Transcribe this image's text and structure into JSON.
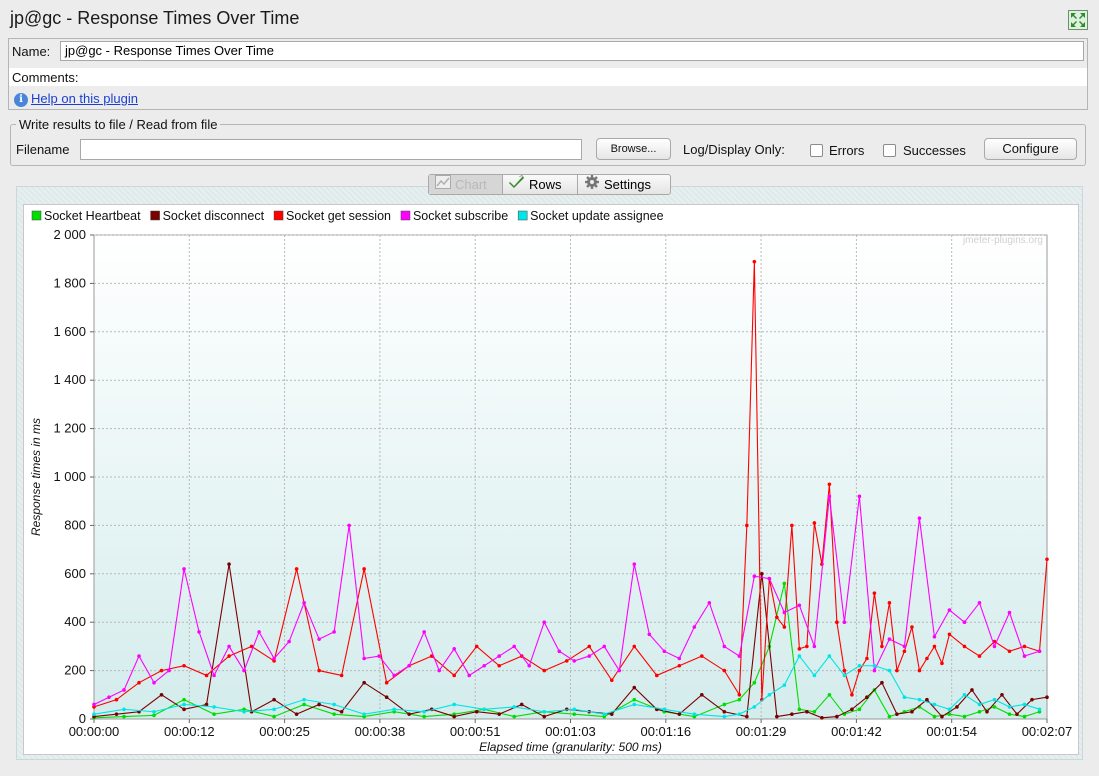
{
  "window": {
    "title": "jp@gc - Response Times Over Time"
  },
  "form": {
    "name_label": "Name:",
    "name_value": "jp@gc - Response Times Over Time",
    "comments_label": "Comments:",
    "help_link": "Help on this plugin"
  },
  "file_section": {
    "title": "Write results to file / Read from file",
    "filename_label": "Filename",
    "filename_value": "",
    "browse_label": "Browse...",
    "log_label": "Log/Display Only:",
    "errors_label": "Errors",
    "successes_label": "Successes",
    "configure_label": "Configure",
    "errors_checked": false,
    "successes_checked": false
  },
  "tabs": [
    {
      "label": "Chart",
      "selected": true,
      "icon": "chart-icon"
    },
    {
      "label": "Rows",
      "selected": false,
      "icon": "checkmark-icon"
    },
    {
      "label": "Settings",
      "selected": false,
      "icon": "gear-icon"
    }
  ],
  "chart_data": {
    "type": "line",
    "watermark": "jmeter-plugins.org",
    "xlabel": "Elapsed time (granularity: 500 ms)",
    "ylabel": "Response times in ms",
    "ylim": [
      0,
      2000
    ],
    "xlim": [
      0,
      127
    ],
    "yticks": [
      0,
      200,
      400,
      600,
      800,
      1000,
      1200,
      1400,
      1600,
      1800,
      2000
    ],
    "ytick_labels": [
      "0",
      "200",
      "400",
      "600",
      "800",
      "1 000",
      "1 200",
      "1 400",
      "1 600",
      "1 800",
      "2 000"
    ],
    "xticks": [
      0,
      12.7,
      25.4,
      38.1,
      50.8,
      63.5,
      76.2,
      88.9,
      101.6,
      114.3,
      127
    ],
    "xtick_labels": [
      "00:00:00",
      "00:00:12",
      "00:00:25",
      "00:00:38",
      "00:00:51",
      "00:01:03",
      "00:01:16",
      "00:01:29",
      "00:01:42",
      "00:01:54",
      "00:02:07"
    ],
    "grid": true,
    "legend_position": "top",
    "series": [
      {
        "name": "Socket Heartbeat",
        "color": "#00dd00",
        "x": [
          0,
          4,
          8,
          12,
          16,
          20,
          24,
          28,
          32,
          36,
          40,
          44,
          48,
          52,
          56,
          60,
          64,
          68,
          72,
          76,
          80,
          84,
          86,
          88,
          90,
          92,
          94,
          96,
          98,
          100,
          102,
          104,
          106,
          108,
          110,
          112,
          114,
          116,
          118,
          120,
          122,
          124,
          126
        ],
        "y": [
          5,
          10,
          15,
          80,
          20,
          40,
          10,
          60,
          20,
          10,
          30,
          10,
          20,
          40,
          10,
          30,
          20,
          10,
          80,
          30,
          10,
          60,
          80,
          150,
          300,
          560,
          40,
          30,
          100,
          20,
          40,
          120,
          10,
          30,
          50,
          10,
          20,
          10,
          30,
          50,
          20,
          10,
          30
        ]
      },
      {
        "name": "Socket disconnect",
        "color": "#7a0000",
        "x": [
          0,
          3,
          6,
          9,
          12,
          15,
          18,
          21,
          24,
          27,
          30,
          33,
          36,
          39,
          42,
          45,
          48,
          51,
          54,
          57,
          60,
          63,
          66,
          69,
          72,
          75,
          78,
          81,
          84,
          87,
          89,
          91,
          93,
          95,
          97,
          99,
          101,
          103,
          105,
          107,
          109,
          111,
          113,
          115,
          117,
          119,
          121,
          123,
          125,
          127
        ],
        "y": [
          10,
          20,
          30,
          100,
          40,
          60,
          640,
          30,
          80,
          20,
          60,
          30,
          150,
          90,
          20,
          40,
          10,
          30,
          20,
          60,
          10,
          40,
          30,
          20,
          130,
          40,
          20,
          100,
          30,
          10,
          600,
          10,
          20,
          30,
          5,
          10,
          40,
          90,
          150,
          20,
          30,
          80,
          10,
          50,
          120,
          30,
          100,
          20,
          80,
          90
        ]
      },
      {
        "name": "Socket get session",
        "color": "#ff0000",
        "x": [
          0,
          3,
          6,
          9,
          12,
          15,
          18,
          21,
          24,
          27,
          30,
          33,
          36,
          39,
          42,
          45,
          48,
          51,
          54,
          57,
          60,
          63,
          66,
          69,
          72,
          75,
          78,
          81,
          84,
          86,
          87,
          88,
          89,
          90,
          91,
          92,
          93,
          94,
          95,
          96,
          97,
          98,
          99,
          100,
          101,
          102,
          103,
          104,
          105,
          106,
          107,
          108,
          109,
          110,
          111,
          112,
          113,
          114,
          116,
          118,
          120,
          122,
          124,
          126,
          127
        ],
        "y": [
          50,
          80,
          150,
          200,
          220,
          180,
          260,
          300,
          240,
          620,
          200,
          180,
          620,
          150,
          220,
          260,
          180,
          300,
          220,
          260,
          200,
          240,
          300,
          160,
          300,
          180,
          220,
          260,
          200,
          100,
          800,
          1890,
          80,
          580,
          420,
          380,
          800,
          290,
          300,
          810,
          640,
          970,
          400,
          200,
          100,
          200,
          250,
          520,
          300,
          480,
          200,
          280,
          380,
          200,
          250,
          300,
          230,
          350,
          300,
          260,
          320,
          280,
          300,
          280,
          660
        ]
      },
      {
        "name": "Socket subscribe",
        "color": "#ff00ff",
        "x": [
          0,
          2,
          4,
          6,
          8,
          10,
          12,
          14,
          16,
          18,
          20,
          22,
          24,
          26,
          28,
          30,
          32,
          34,
          36,
          38,
          40,
          42,
          44,
          46,
          48,
          50,
          52,
          54,
          56,
          58,
          60,
          62,
          64,
          66,
          68,
          70,
          72,
          74,
          76,
          78,
          80,
          82,
          84,
          86,
          88,
          90,
          92,
          94,
          96,
          98,
          100,
          102,
          104,
          106,
          108,
          110,
          112,
          114,
          116,
          118,
          120,
          122,
          124,
          126
        ],
        "y": [
          60,
          90,
          120,
          260,
          150,
          200,
          620,
          360,
          180,
          300,
          200,
          360,
          250,
          320,
          480,
          330,
          360,
          800,
          250,
          260,
          180,
          220,
          360,
          200,
          290,
          180,
          220,
          260,
          300,
          220,
          400,
          280,
          240,
          260,
          300,
          200,
          640,
          350,
          280,
          250,
          380,
          480,
          300,
          260,
          590,
          580,
          440,
          470,
          300,
          920,
          400,
          920,
          200,
          330,
          300,
          830,
          340,
          450,
          400,
          480,
          300,
          440,
          260,
          280
        ]
      },
      {
        "name": "Socket update assignee",
        "color": "#00e5e5",
        "x": [
          0,
          4,
          8,
          12,
          16,
          20,
          24,
          28,
          32,
          36,
          40,
          44,
          48,
          52,
          56,
          60,
          64,
          68,
          72,
          76,
          80,
          84,
          86,
          88,
          90,
          92,
          94,
          96,
          98,
          100,
          102,
          104,
          106,
          108,
          110,
          112,
          114,
          116,
          118,
          120,
          122,
          124,
          126
        ],
        "y": [
          20,
          40,
          30,
          60,
          50,
          30,
          40,
          80,
          60,
          20,
          40,
          30,
          60,
          40,
          50,
          30,
          40,
          20,
          60,
          40,
          20,
          10,
          20,
          50,
          100,
          140,
          260,
          180,
          260,
          180,
          220,
          220,
          200,
          90,
          80,
          60,
          40,
          100,
          60,
          80,
          50,
          60,
          40
        ]
      }
    ]
  }
}
